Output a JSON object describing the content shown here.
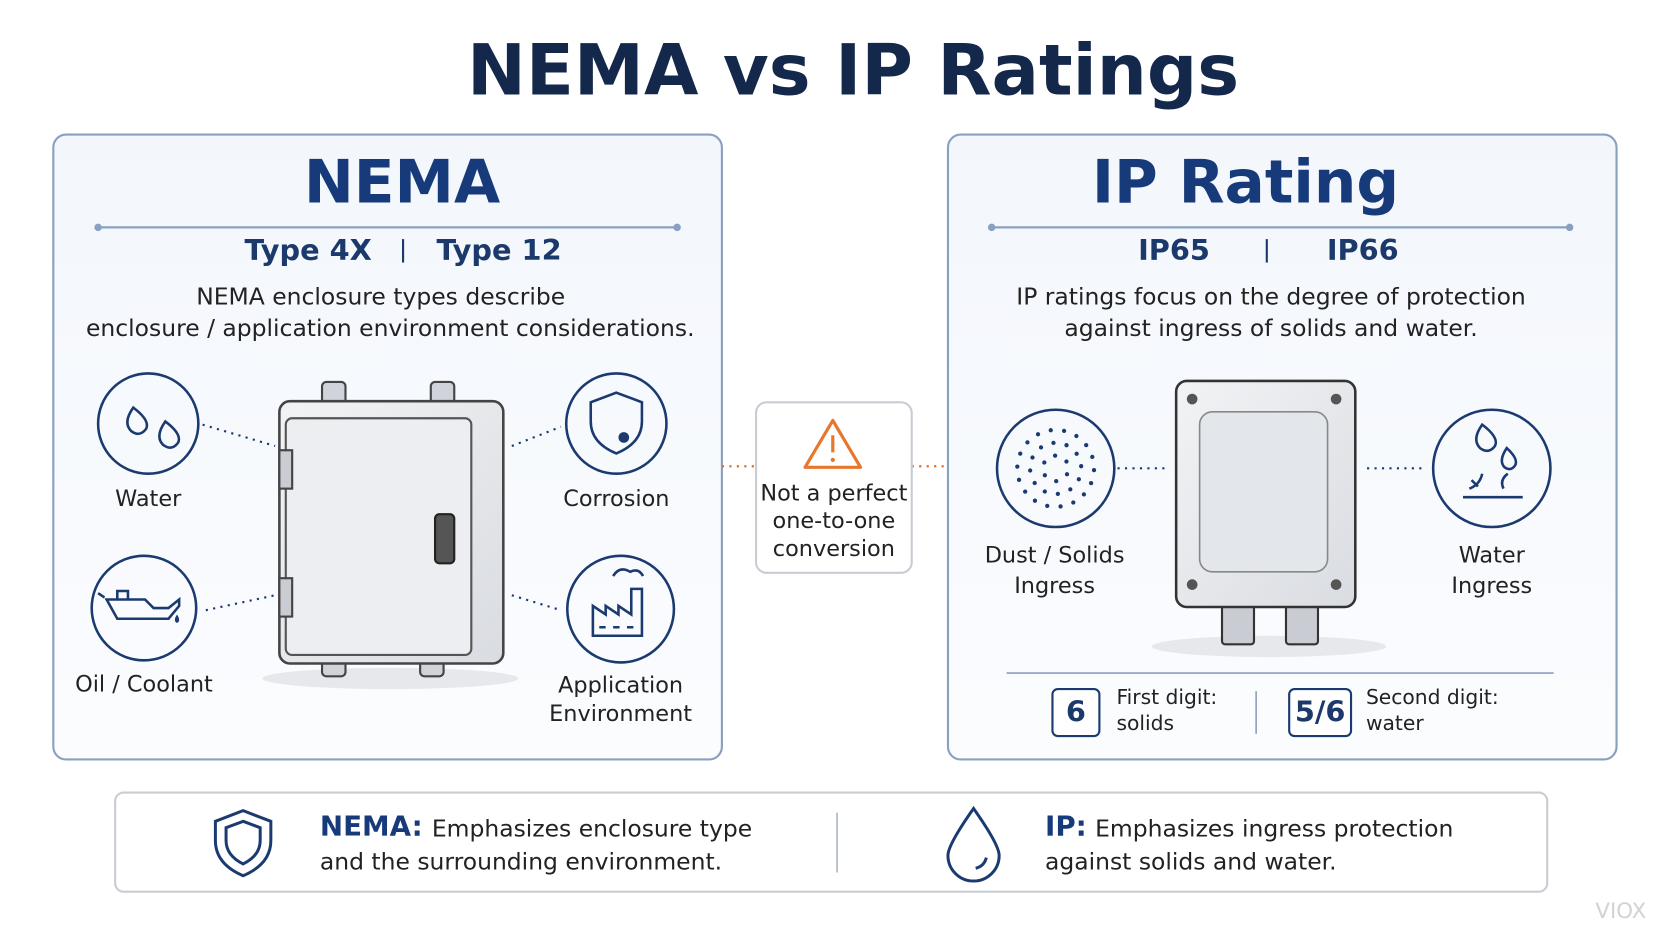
{
  "title": "NEMA vs IP Ratings",
  "nema": {
    "heading": "NEMA",
    "types": [
      "Type 4X",
      "Type 12"
    ],
    "description": [
      "NEMA enclosure types describe",
      "enclosure / application environment considerations."
    ],
    "icons": [
      {
        "label": [
          "Water"
        ]
      },
      {
        "label": [
          "Corrosion"
        ]
      },
      {
        "label": [
          "Oil / Coolant"
        ]
      },
      {
        "label": [
          "Application",
          "Environment"
        ]
      }
    ]
  },
  "note": {
    "lines": [
      "Not a perfect",
      "one-to-one",
      "conversion"
    ]
  },
  "ip": {
    "heading": "IP Rating",
    "types": [
      "IP65",
      "IP66"
    ],
    "description": [
      "IP ratings focus on the degree of protection",
      "against ingress of solids and water."
    ],
    "icons": [
      {
        "label": [
          "Dust / Solids",
          "Ingress"
        ]
      },
      {
        "label": [
          "Water",
          "Ingress"
        ]
      }
    ],
    "digits": [
      {
        "value": "6",
        "label": [
          "First digit:",
          "solids"
        ]
      },
      {
        "value": "5/6",
        "label": [
          "Second digit:",
          "water"
        ]
      }
    ]
  },
  "summary": [
    {
      "term": "NEMA:",
      "text": [
        "Emphasizes enclosure type",
        "and the surrounding environment."
      ]
    },
    {
      "term": "IP:",
      "text": [
        "Emphasizes ingress protection",
        "against solids and water."
      ]
    }
  ],
  "watermark": "VIOX"
}
